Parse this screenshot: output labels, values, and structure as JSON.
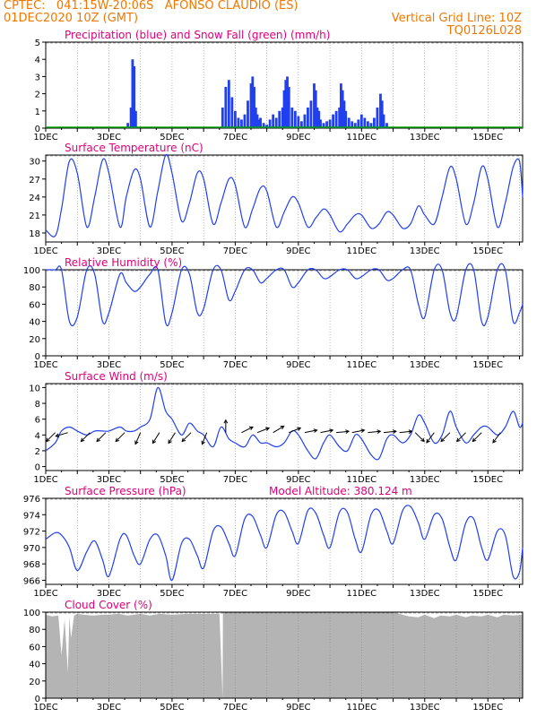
{
  "header": {
    "station": "CPTEC:   041:15W-20:06S   AFONSO CLAUDIO (ES)",
    "run": "01DEC2020 10Z (GMT)",
    "grid_note": "Vertical Grid Line: 10Z",
    "code": "TQ0126L028"
  },
  "colors": {
    "header": "#f07800",
    "title": "#e0007a",
    "series": "#2040f0",
    "snow": "#00a000",
    "cloud": "#b4b4b4",
    "arrow": "#000000"
  },
  "chart_data": [
    {
      "id": "precip",
      "type": "bar",
      "title": "Precipitation (blue) and Snow Fall (green) (mm/h)",
      "ylim": [
        0,
        5
      ],
      "yticks": [
        0,
        1,
        2,
        3,
        4,
        5
      ],
      "xticks": [
        "1DEC",
        "3DEC",
        "5DEC",
        "7DEC",
        "9DEC",
        "11DEC",
        "13DEC",
        "15DEC"
      ],
      "xlim_days": [
        1,
        16.1
      ],
      "series": [
        {
          "name": "Precipitation",
          "color": "#2040f0",
          "x": [
            3.6,
            3.7,
            3.75,
            3.8,
            3.85,
            6.6,
            6.7,
            6.8,
            6.9,
            7.0,
            7.1,
            7.2,
            7.3,
            7.4,
            7.5,
            7.55,
            7.6,
            7.65,
            7.7,
            7.75,
            7.8,
            7.9,
            8.0,
            8.1,
            8.2,
            8.3,
            8.4,
            8.5,
            8.55,
            8.6,
            8.65,
            8.7,
            8.8,
            8.9,
            9.0,
            9.1,
            9.2,
            9.3,
            9.4,
            9.5,
            9.55,
            9.6,
            9.65,
            9.7,
            9.8,
            9.9,
            10.0,
            10.1,
            10.2,
            10.3,
            10.35,
            10.4,
            10.45,
            10.5,
            10.6,
            10.7,
            10.8,
            10.9,
            11.0,
            11.1,
            11.2,
            11.3,
            11.4,
            11.5,
            11.6,
            11.65,
            11.7,
            11.8
          ],
          "values": [
            0.3,
            1.2,
            4.0,
            3.6,
            1.0,
            1.2,
            2.4,
            2.8,
            1.8,
            1.0,
            0.6,
            0.5,
            0.8,
            1.6,
            2.6,
            3.0,
            2.4,
            1.2,
            0.8,
            0.5,
            0.6,
            0.3,
            0.2,
            0.5,
            0.8,
            0.6,
            1.0,
            1.2,
            2.2,
            2.8,
            3.0,
            2.4,
            1.2,
            1.0,
            0.7,
            0.4,
            0.8,
            1.2,
            1.6,
            2.6,
            2.2,
            1.2,
            1.0,
            0.5,
            0.3,
            0.4,
            0.5,
            0.8,
            1.0,
            1.2,
            2.6,
            2.2,
            1.6,
            1.0,
            0.6,
            0.4,
            0.3,
            0.5,
            0.8,
            0.6,
            0.4,
            0.3,
            0.6,
            1.2,
            2.0,
            1.6,
            0.8,
            0.3
          ]
        },
        {
          "name": "Snow Fall",
          "color": "#00a000",
          "values": [
            0
          ]
        }
      ]
    },
    {
      "id": "temp",
      "type": "line",
      "title": "Surface Temperature (nC)",
      "ylim": [
        16.5,
        31
      ],
      "yticks": [
        18,
        21,
        24,
        27,
        30
      ],
      "xticks": [
        "1DEC",
        "3DEC",
        "5DEC",
        "7DEC",
        "9DEC",
        "11DEC",
        "13DEC",
        "15DEC"
      ],
      "series": [
        {
          "name": "",
          "color": "#2040f0",
          "x": [
            1.0,
            1.3,
            1.5,
            1.75,
            2.0,
            2.3,
            2.55,
            2.8,
            3.0,
            3.35,
            3.55,
            3.8,
            4.0,
            4.3,
            4.55,
            4.8,
            5.0,
            5.3,
            5.55,
            5.8,
            6.0,
            6.3,
            6.55,
            6.8,
            7.0,
            7.3,
            7.55,
            7.8,
            8.0,
            8.3,
            8.55,
            8.8,
            9.0,
            9.3,
            9.55,
            9.8,
            10.0,
            10.3,
            10.55,
            10.8,
            11.0,
            11.3,
            11.55,
            11.8,
            12.0,
            12.3,
            12.55,
            12.8,
            13.0,
            13.3,
            13.55,
            13.8,
            14.0,
            14.3,
            14.55,
            14.8,
            15.0,
            15.3,
            15.55,
            15.8,
            16.0,
            16.1
          ],
          "values": [
            18.5,
            17.5,
            22,
            30,
            28,
            19,
            24,
            30.2,
            28,
            19,
            24,
            28.5,
            27,
            19,
            25,
            31,
            28,
            20,
            23,
            28,
            27,
            19.5,
            23,
            27,
            26,
            19,
            22,
            25.5,
            25,
            19,
            21.5,
            24,
            23,
            19,
            20.5,
            22,
            21,
            18.2,
            19.5,
            21,
            21,
            18.8,
            19.5,
            21.5,
            21,
            18.8,
            19.5,
            22.5,
            21,
            19.5,
            24,
            29,
            27,
            19.5,
            23,
            29,
            27,
            19,
            23,
            29,
            30,
            24
          ]
        }
      ]
    },
    {
      "id": "rh",
      "type": "line",
      "title": "Relative Humidity (%)",
      "ylim": [
        0,
        100
      ],
      "yticks": [
        0,
        20,
        40,
        60,
        80,
        100
      ],
      "xticks": [
        "1DEC",
        "3DEC",
        "5DEC",
        "7DEC",
        "9DEC",
        "11DEC",
        "13DEC",
        "15DEC"
      ],
      "series": [
        {
          "name": "",
          "color": "#2040f0",
          "x": [
            1.0,
            1.3,
            1.5,
            1.75,
            2.0,
            2.3,
            2.55,
            2.8,
            3.0,
            3.35,
            3.55,
            3.8,
            4.0,
            4.3,
            4.55,
            4.8,
            5.0,
            5.3,
            5.55,
            5.8,
            6.0,
            6.3,
            6.55,
            6.8,
            7.0,
            7.3,
            7.55,
            7.8,
            8.0,
            8.3,
            8.55,
            8.8,
            9.0,
            9.3,
            9.55,
            9.8,
            10.0,
            10.3,
            10.55,
            10.8,
            11.0,
            11.3,
            11.55,
            11.8,
            12.0,
            12.3,
            12.55,
            12.8,
            13.0,
            13.3,
            13.55,
            13.8,
            14.0,
            14.3,
            14.55,
            14.8,
            15.0,
            15.3,
            15.55,
            15.8,
            16.0,
            16.1
          ],
          "values": [
            100,
            100,
            100,
            40,
            45,
            100,
            95,
            40,
            50,
            95,
            85,
            75,
            80,
            95,
            100,
            38,
            50,
            100,
            95,
            50,
            55,
            100,
            100,
            65,
            75,
            100,
            100,
            85,
            90,
            100,
            100,
            80,
            85,
            100,
            100,
            90,
            92,
            100,
            100,
            90,
            92,
            100,
            100,
            88,
            90,
            100,
            100,
            60,
            45,
            100,
            100,
            50,
            45,
            100,
            100,
            40,
            45,
            100,
            100,
            40,
            50,
            60
          ]
        }
      ]
    },
    {
      "id": "wind",
      "type": "line",
      "title": "Surface Wind (m/s)",
      "ylim": [
        -0.5,
        10.5
      ],
      "yticks": [
        0,
        2,
        4,
        6,
        8,
        10
      ],
      "xticks": [
        "1DEC",
        "3DEC",
        "5DEC",
        "7DEC",
        "9DEC",
        "11DEC",
        "13DEC",
        "15DEC"
      ],
      "series": [
        {
          "name": "",
          "color": "#2040f0",
          "x": [
            1.0,
            1.3,
            1.5,
            1.75,
            2.0,
            2.3,
            2.55,
            2.8,
            3.0,
            3.35,
            3.55,
            3.8,
            4.0,
            4.3,
            4.55,
            4.8,
            5.0,
            5.3,
            5.55,
            5.8,
            6.0,
            6.3,
            6.55,
            6.8,
            7.0,
            7.3,
            7.55,
            7.8,
            8.0,
            8.3,
            8.55,
            8.8,
            9.0,
            9.3,
            9.55,
            9.8,
            10.0,
            10.3,
            10.55,
            10.8,
            11.0,
            11.3,
            11.55,
            11.8,
            12.0,
            12.3,
            12.55,
            12.8,
            13.0,
            13.3,
            13.55,
            13.8,
            14.0,
            14.3,
            14.55,
            14.8,
            15.0,
            15.3,
            15.55,
            15.8,
            16.0,
            16.1
          ],
          "values": [
            2,
            3,
            4.5,
            5,
            4.5,
            4,
            4.5,
            4.5,
            4.5,
            5,
            4.5,
            4.5,
            5,
            6,
            10,
            7,
            6,
            4,
            5.5,
            4.5,
            4,
            2.5,
            5,
            3.5,
            3,
            2.5,
            4,
            3,
            3,
            2.5,
            3,
            4.5,
            4,
            2,
            1,
            3,
            4,
            2.5,
            2,
            4,
            3.5,
            1.5,
            1,
            3.5,
            4,
            3,
            4,
            6.5,
            5.5,
            3,
            4,
            7,
            5,
            3,
            4,
            5,
            5,
            4,
            5,
            7,
            5,
            5.5
          ]
        }
      ],
      "arrows": {
        "x": [
          1.3,
          1.7,
          2.4,
          2.9,
          3.5,
          4.0,
          4.6,
          5.1,
          5.6,
          6.1,
          6.7,
          7.2,
          7.7,
          8.2,
          8.7,
          9.2,
          9.7,
          10.2,
          10.7,
          11.2,
          11.7,
          12.2,
          12.7,
          13.3,
          13.8,
          14.3,
          14.8,
          15.4
        ],
        "u": [
          -1,
          -1,
          -1,
          -1,
          -1,
          -0.7,
          -1,
          -1,
          -1,
          -0.4,
          0,
          1,
          1,
          1,
          1,
          1,
          1,
          1,
          1,
          1,
          1,
          1,
          0.7,
          -0.6,
          -0.7,
          -0.7,
          -0.7,
          -0.6
        ],
        "v": [
          -1,
          -0.3,
          -1,
          -1,
          -1,
          -1.6,
          -1.6,
          -1.6,
          -1,
          -1,
          1,
          0.5,
          0.4,
          0.6,
          0.4,
          0.2,
          0.2,
          0.1,
          0.2,
          0.1,
          0.1,
          0.1,
          -0.7,
          -0.8,
          -0.7,
          -0.7,
          -0.7,
          -0.8
        ]
      }
    },
    {
      "id": "pres",
      "type": "line",
      "title": "Surface Pressure (hPa)",
      "subtitle": "Model Altitude: 380.124 m",
      "ylim": [
        965.5,
        976
      ],
      "yticks": [
        966,
        968,
        970,
        972,
        974,
        976
      ],
      "xticks": [
        "1DEC",
        "3DEC",
        "5DEC",
        "7DEC",
        "9DEC",
        "11DEC",
        "13DEC",
        "15DEC"
      ],
      "series": [
        {
          "name": "",
          "color": "#2040f0",
          "x": [
            1.0,
            1.3,
            1.5,
            1.75,
            2.0,
            2.3,
            2.55,
            2.8,
            3.0,
            3.35,
            3.55,
            3.8,
            4.0,
            4.3,
            4.55,
            4.8,
            5.0,
            5.3,
            5.55,
            5.8,
            6.0,
            6.3,
            6.55,
            6.8,
            7.0,
            7.3,
            7.55,
            7.8,
            8.0,
            8.3,
            8.55,
            8.8,
            9.0,
            9.3,
            9.55,
            9.8,
            10.0,
            10.3,
            10.55,
            10.8,
            11.0,
            11.3,
            11.55,
            11.8,
            12.0,
            12.3,
            12.55,
            12.8,
            13.0,
            13.3,
            13.55,
            13.8,
            14.0,
            14.3,
            14.55,
            14.8,
            15.0,
            15.3,
            15.55,
            15.8,
            16.0,
            16.1
          ],
          "values": [
            971,
            971.8,
            971.5,
            970,
            967.2,
            969.5,
            970.8,
            968.5,
            966.5,
            971,
            971.5,
            969,
            968,
            971,
            971.5,
            969,
            966,
            970.5,
            971,
            969,
            967.5,
            972,
            972.5,
            970.5,
            969,
            973.5,
            973.8,
            971.5,
            970,
            974,
            974.3,
            972,
            970.5,
            974.5,
            974.2,
            971.5,
            970,
            974.3,
            974.3,
            971,
            969.5,
            974,
            974.5,
            972,
            970.5,
            974.5,
            975,
            973,
            971,
            974,
            973.5,
            970,
            968.5,
            973,
            973.5,
            970,
            968.5,
            972,
            971.5,
            966.5,
            967,
            970
          ]
        }
      ]
    },
    {
      "id": "cloud",
      "type": "area",
      "title": "Cloud Cover (%)",
      "ylim": [
        0,
        100
      ],
      "yticks": [
        0,
        20,
        40,
        60,
        80,
        100
      ],
      "xticks": [
        "1DEC",
        "3DEC",
        "5DEC",
        "7DEC",
        "9DEC",
        "11DEC",
        "13DEC",
        "15DEC"
      ],
      "series": [
        {
          "name": "",
          "color": "#b4b4b4",
          "x": [
            1.0,
            1.2,
            1.4,
            1.5,
            1.6,
            1.7,
            1.75,
            1.8,
            1.9,
            2.0,
            2.2,
            2.5,
            2.8,
            3.0,
            3.3,
            3.6,
            4.0,
            4.3,
            4.6,
            5.0,
            5.5,
            6.0,
            6.5,
            6.6,
            6.61,
            7.0,
            8.0,
            9.0,
            10.0,
            11.0,
            12.0,
            12.5,
            12.8,
            13.0,
            13.3,
            13.5,
            13.8,
            14.0,
            14.3,
            14.5,
            14.8,
            15.0,
            15.3,
            15.5,
            15.8,
            16.1
          ],
          "values": [
            97,
            95,
            96,
            50,
            92,
            30,
            95,
            70,
            96,
            98,
            97,
            96,
            97,
            97,
            98,
            96,
            98,
            96,
            98,
            97,
            98,
            98,
            98,
            0,
            100,
            100,
            100,
            100,
            100,
            100,
            100,
            95,
            94,
            97,
            93,
            96,
            95,
            97,
            94,
            96,
            95,
            97,
            94,
            97,
            96,
            97
          ]
        }
      ]
    }
  ]
}
